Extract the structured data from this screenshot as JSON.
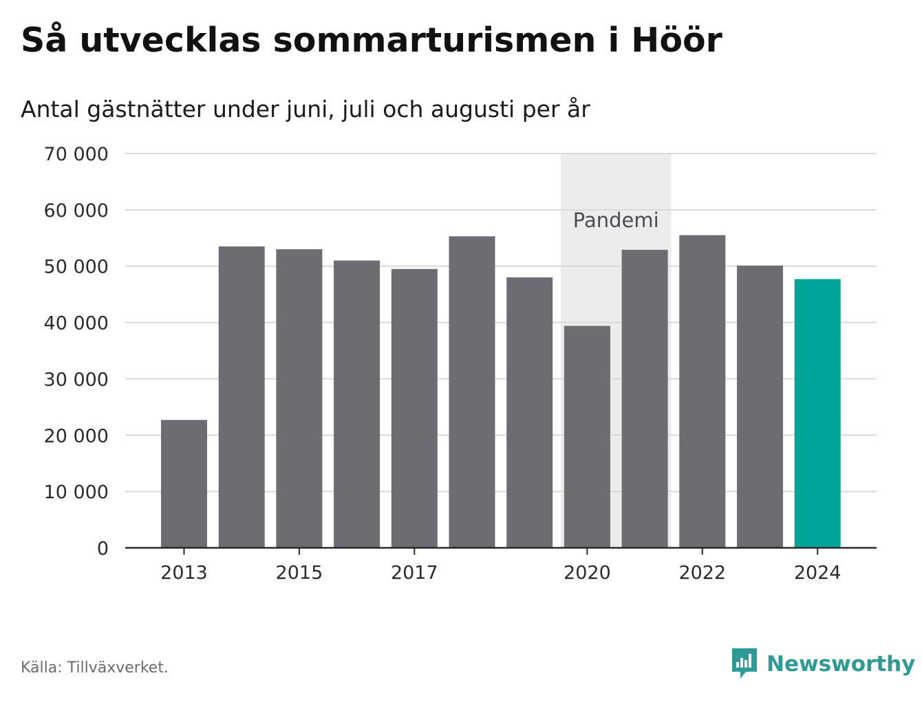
{
  "header": {
    "title": "Så utvecklas sommarturismen i Höör",
    "subtitle": "Antal gästnätter under juni, juli och augusti per år"
  },
  "footer": {
    "source": "Källa: Tillväxverket.",
    "brand": "Newsworthy"
  },
  "colors": {
    "bar": "#6d6c72",
    "highlight": "#00a499",
    "band": "#ececec",
    "grid": "#d9d9d9",
    "axis": "#2a2a2a",
    "brand": "#2e9a95"
  },
  "chart_data": {
    "type": "bar",
    "title": "Så utvecklas sommarturismen i Höör",
    "subtitle": "Antal gästnätter under juni, juli och augusti per år",
    "categories": [
      2013,
      2014,
      2015,
      2016,
      2017,
      2018,
      2019,
      2020,
      2021,
      2022,
      2023,
      2024
    ],
    "values": [
      22700,
      53500,
      53000,
      51000,
      49500,
      55300,
      48000,
      39400,
      52900,
      55500,
      50100,
      47700
    ],
    "highlight_category": 2024,
    "xtick_labels": [
      "2013",
      "2015",
      "2017",
      "2020",
      "2022",
      "2024"
    ],
    "ylim": [
      0,
      70000
    ],
    "yticks": [
      0,
      10000,
      20000,
      30000,
      40000,
      50000,
      60000,
      70000
    ],
    "ytick_labels": [
      "0",
      "10 000",
      "20 000",
      "30 000",
      "40 000",
      "50 000",
      "60 000",
      "70 000"
    ],
    "grid": true,
    "annotation": {
      "label": "Pandemi",
      "x_start": 2020,
      "x_end": 2021
    },
    "xlabel": "",
    "ylabel": ""
  }
}
